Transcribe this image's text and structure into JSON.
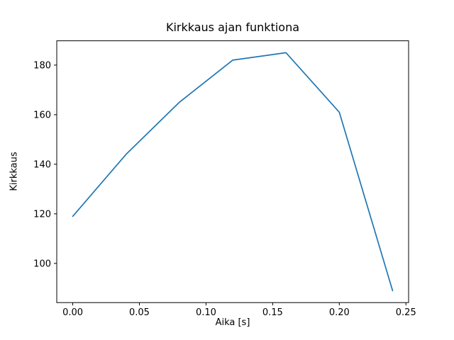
{
  "chart_data": {
    "type": "line",
    "title": "Kirkkaus ajan funktiona",
    "xlabel": "Aika [s]",
    "ylabel": "Kirkkaus",
    "x": [
      0.0,
      0.04,
      0.08,
      0.12,
      0.16,
      0.2,
      0.24
    ],
    "values": [
      119,
      144,
      165,
      182,
      185,
      161,
      89
    ],
    "xlim": [
      -0.012,
      0.252
    ],
    "ylim": [
      84.2,
      189.8
    ],
    "xticks": [
      0.0,
      0.05,
      0.1,
      0.15,
      0.2,
      0.25
    ],
    "xtick_labels": [
      "0.00",
      "0.05",
      "0.10",
      "0.15",
      "0.20",
      "0.25"
    ],
    "yticks": [
      100,
      120,
      140,
      160,
      180
    ],
    "ytick_labels": [
      "100",
      "120",
      "140",
      "160",
      "180"
    ],
    "line_color": "#1f77b4",
    "axis_color": "#000000",
    "grid": "off",
    "legend": "none"
  }
}
